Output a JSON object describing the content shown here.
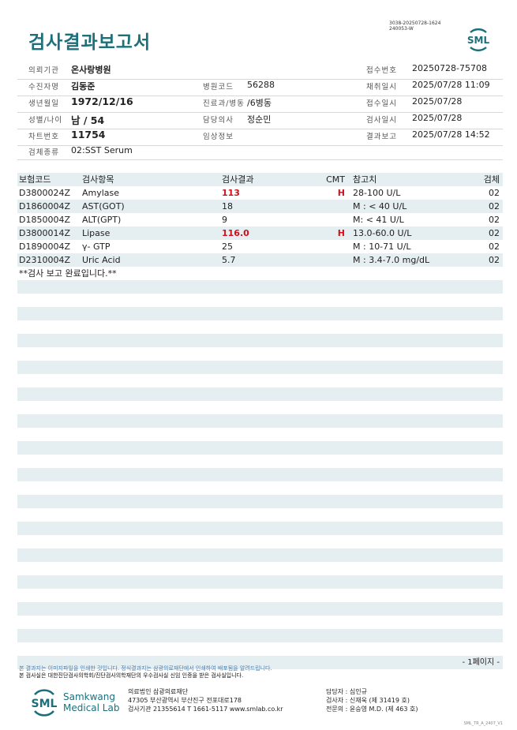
{
  "header": {
    "title": "검사결과보고서",
    "doc_id": [
      "3038-20250728-1624",
      "240053-W"
    ],
    "logo_text": "SML"
  },
  "info": {
    "institution": {
      "label": "의뢰기관",
      "value": "온사랑병원"
    },
    "receipt_no": {
      "label": "접수번호",
      "value": "20250728-75708"
    },
    "patient": {
      "label": "수진자명",
      "value": "김동준"
    },
    "hospital_code": {
      "label": "병원코드",
      "value": "56288"
    },
    "collected": {
      "label": "채취일시",
      "value": "2025/07/28 11:09"
    },
    "birth": {
      "label": "생년월일",
      "value": "1972/12/16"
    },
    "dept": {
      "label": "진료과/병동",
      "value": "/6병동"
    },
    "received": {
      "label": "접수일시",
      "value": "2025/07/28"
    },
    "sex_age": {
      "label": "성별/나이",
      "value": "남 / 54"
    },
    "doctor": {
      "label": "담당의사",
      "value": "정순민"
    },
    "tested": {
      "label": "검사일시",
      "value": "2025/07/28"
    },
    "chart_no": {
      "label": "차트번호",
      "value": "11754"
    },
    "clinical": {
      "label": "임상정보",
      "value": ""
    },
    "reported": {
      "label": "결과보고",
      "value": "2025/07/28 14:52"
    },
    "specimen": {
      "label": "검체종류",
      "value": "02:SST Serum"
    }
  },
  "table": {
    "columns": [
      "보험코드",
      "검사항목",
      "검사결과",
      "CMT",
      "참고치",
      "검체"
    ],
    "rows": [
      {
        "code": "D3800024Z",
        "item": "Amylase",
        "result": "113",
        "cmt": "H",
        "ref": "28-100 U/L",
        "specimen": "02",
        "abnormal": true
      },
      {
        "code": "D1860004Z",
        "item": "AST(GOT)",
        "result": "18",
        "cmt": "",
        "ref": "M : < 40 U/L",
        "specimen": "02",
        "abnormal": false
      },
      {
        "code": "D1850004Z",
        "item": "ALT(GPT)",
        "result": "9",
        "cmt": "",
        "ref": "M: < 41 U/L",
        "specimen": "02",
        "abnormal": false
      },
      {
        "code": "D3800014Z",
        "item": "Lipase",
        "result": "116.0",
        "cmt": "H",
        "ref": "13.0-60.0 U/L",
        "specimen": "02",
        "abnormal": true
      },
      {
        "code": "D1890004Z",
        "item": "γ- GTP",
        "result": "25",
        "cmt": "",
        "ref": "M : 10-71 U/L",
        "specimen": "02",
        "abnormal": false
      },
      {
        "code": "D2310004Z",
        "item": "Uric Acid",
        "result": "5.7",
        "cmt": "",
        "ref": "M : 3.4-7.0 mg/dL",
        "specimen": "02",
        "abnormal": false
      }
    ],
    "note": "**검사 보고 완료입니다.**",
    "abnormal_color": "#d0101a"
  },
  "page_label": "- 1페이지 -",
  "footer": {
    "notice1": "본 결과지는 이미지파일을 인쇄한 것입니다. 정식결과지는 삼광의료재단에서 인쇄하여 배포됨을 알려드립니다.",
    "notice2": "본 검사실은 대한진단검사의학회/진단검사의학재단의 우수검사실 신임 인증을 받은 검사실입니다.",
    "lab_name_1": "Samkwang",
    "lab_name_2": "Medical Lab",
    "org": "의료법인 삼광의료재단",
    "address": "47305 부산광역시 부산진구 전포대로178",
    "contact": "검사기관 21355614 T 1661-5117 www.smlab.co.kr",
    "manager": "담당자 : 심인규",
    "tester": "검사자 : 신재욱 (제 31419 호)",
    "specialist": "전문의 : 윤승영 M.D. (제 463 호)",
    "form_code": "SML_TR_A_2407_V1"
  },
  "colors": {
    "brand": "#1d6f7a",
    "stripe": "#e5eef1"
  }
}
